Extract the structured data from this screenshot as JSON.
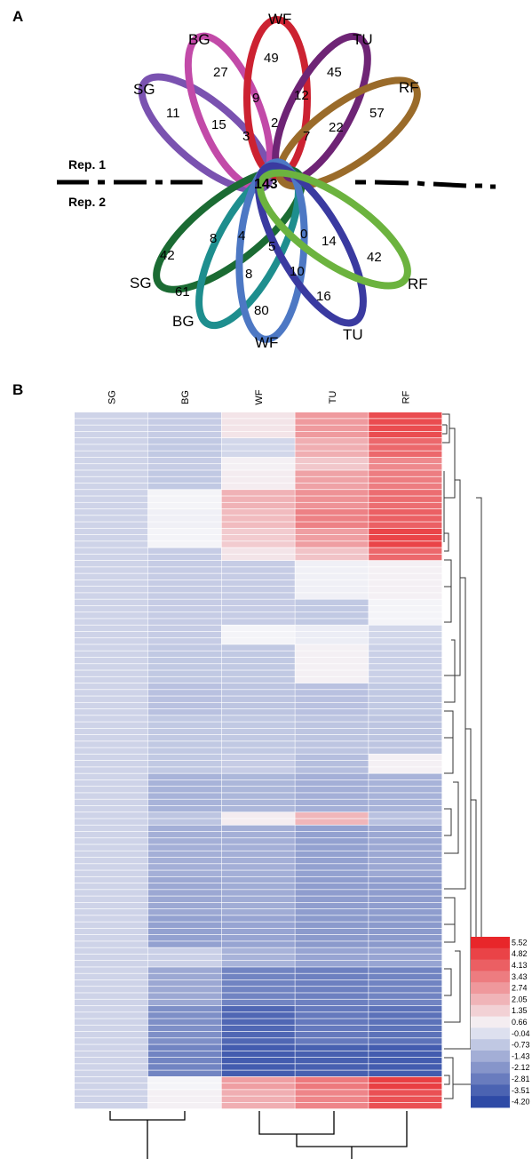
{
  "panels": {
    "a": "A",
    "b": "B"
  },
  "chart_data": [
    {
      "type": "venn",
      "reps": {
        "rep1": "Rep. 1",
        "rep2": "Rep. 2"
      },
      "core": "143",
      "rep1": {
        "sets": [
          "SG",
          "BG",
          "WF",
          "TU",
          "RF"
        ],
        "counts": [
          "11",
          "27",
          "15",
          "49",
          "9",
          "3",
          "45",
          "12",
          "2",
          "7",
          "57",
          "22"
        ]
      },
      "rep2": {
        "sets": [
          "SG",
          "BG",
          "WF",
          "TU",
          "RF"
        ],
        "counts": [
          "42",
          "8",
          "4",
          "61",
          "8",
          "5",
          "80",
          "10",
          "0",
          "16",
          "14",
          "42"
        ]
      },
      "colors": {
        "rep1": [
          "#7a52b0",
          "#c24aa8",
          "#cc2231",
          "#6e2475",
          "#9a6b2a"
        ],
        "rep2": [
          "#1b6b33",
          "#1e8e8e",
          "#4d78c4",
          "#3a3aa0",
          "#6cb33f"
        ]
      }
    },
    {
      "type": "heatmap",
      "columns": [
        "SG",
        "BG",
        "WF",
        "TU",
        "RF"
      ],
      "scale_ticks": [
        "5.52",
        "4.82",
        "4.13",
        "3.43",
        "2.74",
        "2.05",
        "1.35",
        "0.66",
        "-0.04",
        "-0.73",
        "-1.43",
        "-2.12",
        "-2.81",
        "-3.51",
        "-4.20"
      ],
      "value_range": [
        -4.2,
        5.52
      ],
      "colors": {
        "low": "#2e4aa6",
        "mid": "#f4f4f8",
        "high": "#e8262a"
      },
      "row_segments": [
        {
          "n": 4,
          "v": [
            -0.4,
            -0.6,
            0.9,
            2.7,
            4.6
          ]
        },
        {
          "n": 3,
          "v": [
            -0.4,
            -0.7,
            -0.3,
            2.2,
            3.9
          ]
        },
        {
          "n": 2,
          "v": [
            -0.4,
            -0.6,
            0.6,
            1.6,
            3.1
          ]
        },
        {
          "n": 3,
          "v": [
            -0.4,
            -0.7,
            0.7,
            2.5,
            3.4
          ]
        },
        {
          "n": 3,
          "v": [
            -0.4,
            0.5,
            2.1,
            2.9,
            3.8
          ]
        },
        {
          "n": 3,
          "v": [
            -0.4,
            0.4,
            1.9,
            3.3,
            4.1
          ]
        },
        {
          "n": 3,
          "v": [
            -0.4,
            0.5,
            1.5,
            2.6,
            4.8
          ]
        },
        {
          "n": 2,
          "v": [
            -0.4,
            -0.6,
            0.9,
            1.7,
            3.9
          ]
        },
        {
          "n": 6,
          "v": [
            -0.4,
            -0.6,
            -0.6,
            0.4,
            0.6
          ]
        },
        {
          "n": 4,
          "v": [
            -0.4,
            -0.6,
            -0.6,
            -0.7,
            0.5
          ]
        },
        {
          "n": 3,
          "v": [
            -0.4,
            -0.6,
            0.5,
            0.3,
            -0.3
          ]
        },
        {
          "n": 6,
          "v": [
            -0.4,
            -0.7,
            -0.7,
            0.6,
            -0.5
          ]
        },
        {
          "n": 5,
          "v": [
            -0.4,
            -0.9,
            -0.8,
            -0.9,
            -0.7
          ]
        },
        {
          "n": 6,
          "v": [
            -0.4,
            -0.7,
            -0.7,
            -0.8,
            -0.8
          ]
        },
        {
          "n": 3,
          "v": [
            -0.4,
            -0.7,
            -0.6,
            -1.0,
            0.6
          ]
        },
        {
          "n": 6,
          "v": [
            -0.4,
            -1.3,
            -1.2,
            -1.4,
            -1.3
          ]
        },
        {
          "n": 2,
          "v": [
            -0.4,
            -0.8,
            0.7,
            2.0,
            -0.9
          ]
        },
        {
          "n": 8,
          "v": [
            -0.4,
            -1.4,
            -1.4,
            -1.8,
            -1.6
          ]
        },
        {
          "n": 6,
          "v": [
            -0.4,
            -1.6,
            -1.5,
            -1.9,
            -1.9
          ]
        },
        {
          "n": 5,
          "v": [
            -0.4,
            -1.8,
            -1.7,
            -2.0,
            -2.0
          ]
        },
        {
          "n": 3,
          "v": [
            -0.4,
            -0.5,
            -1.3,
            -1.7,
            -1.7
          ]
        },
        {
          "n": 6,
          "v": [
            -0.4,
            -1.6,
            -2.6,
            -2.7,
            -2.6
          ]
        },
        {
          "n": 6,
          "v": [
            -0.4,
            -2.3,
            -3.4,
            -2.9,
            -3.1
          ]
        },
        {
          "n": 5,
          "v": [
            -0.4,
            -2.6,
            -3.7,
            -3.6,
            -3.7
          ]
        },
        {
          "n": 2,
          "v": [
            -0.4,
            0.5,
            2.6,
            3.5,
            4.9
          ]
        },
        {
          "n": 3,
          "v": [
            -0.4,
            0.6,
            2.2,
            3.2,
            4.5
          ]
        }
      ]
    }
  ]
}
